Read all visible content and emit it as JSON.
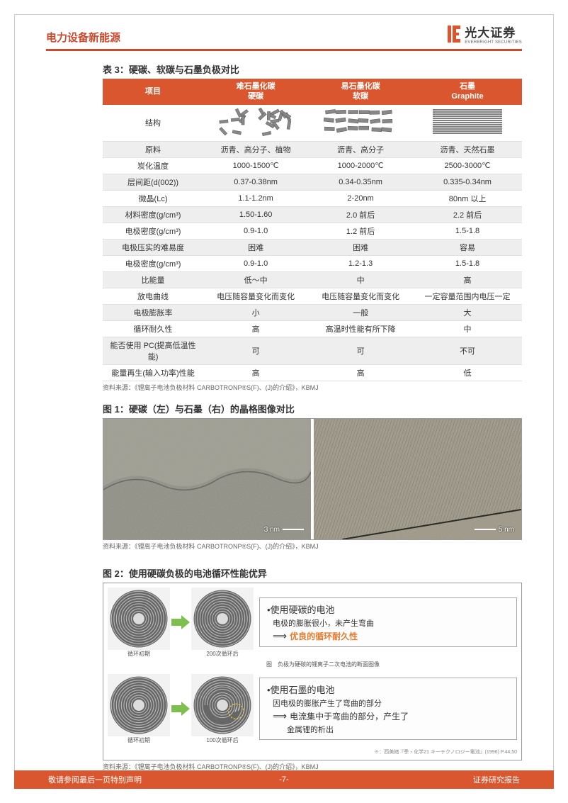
{
  "header": {
    "category": "电力设备新能源",
    "logo_cn": "光大证券",
    "logo_en": "EVERBRIGHT SECURITIES"
  },
  "table3": {
    "title": "表 3：硬碳、软碳与石墨负极对比",
    "header_col1": "项目",
    "header_col2_line1": "难石墨化碳",
    "header_col2_line2": "硬碳",
    "header_col3_line1": "易石墨化碳",
    "header_col3_line2": "软碳",
    "header_col4_line1": "石墨",
    "header_col4_line2": "Graphite",
    "rows": [
      {
        "label": "结构",
        "c2": "",
        "c3": "",
        "c4": "",
        "is_structure": true
      },
      {
        "label": "原料",
        "c2": "沥青、高分子、植物",
        "c3": "沥青、高分子",
        "c4": "沥青、天然石墨"
      },
      {
        "label": "炭化温度",
        "c2": "1000-1500℃",
        "c3": "1000-2000℃",
        "c4": "2500-3000℃"
      },
      {
        "label": "层间距(d(002))",
        "c2": "0.37-0.38nm",
        "c3": "0.34-0.35nm",
        "c4": "0.335-0.34nm"
      },
      {
        "label": "微晶(Lc)",
        "c2": "1.1-1.2nm",
        "c3": "2-20nm",
        "c4": "80nm 以上"
      },
      {
        "label": "材料密度(g/cm³)",
        "c2": "1.50-1.60",
        "c3": "2.0 前后",
        "c4": "2.2 前后"
      },
      {
        "label": "电极密度(g/cm³)",
        "c2": "0.9-1.0",
        "c3": "1.2 前后",
        "c4": "1.5-1.8"
      },
      {
        "label": "电极压实的难易度",
        "c2": "困难",
        "c3": "困难",
        "c4": "容易"
      },
      {
        "label": "电极密度(g/cm³)",
        "c2": "0.9-1.0",
        "c3": "1.2-1.3",
        "c4": "1.5-1.8"
      },
      {
        "label": "比能量",
        "c2": "低～中",
        "c3": "中",
        "c4": "高"
      },
      {
        "label": "放电曲线",
        "c2": "电压随容量变化而变化",
        "c3": "电压随容量变化而变化",
        "c4": "一定容量范围内电压一定"
      },
      {
        "label": "电极膨胀率",
        "c2": "小",
        "c3": "一般",
        "c4": "大"
      },
      {
        "label": "循环耐久性",
        "c2": "高",
        "c3": "高温时性能有所下降",
        "c4": "中"
      },
      {
        "label": "能否使用 PC(提高低温性能)",
        "c2": "可",
        "c3": "可",
        "c4": "不可"
      },
      {
        "label": "能量再生(输入功率)性能",
        "c2": "高",
        "c3": "高",
        "c4": "低"
      }
    ],
    "source": "资料来源：《锂离子电池负极材料 CARBOTRONP®S(F)、(J)的介绍》，KBMJ"
  },
  "figure1": {
    "title": "图 1：硬碳（左）与石墨（右）的晶格图像对比",
    "scale_left": "3 nm",
    "scale_right": "5 nm",
    "source": "资料来源：《锂离子电池负极材料 CARBOTRONP®S(F)、(J)的介绍》，KBMJ"
  },
  "figure2": {
    "title": "图 2：使用硬碳负极的电池循环性能优异",
    "row1": {
      "caption_left": "循环初期",
      "caption_right": "200次循环后",
      "caption_sub": "图　负极为硬碳的锂离子二次电池的断面图像",
      "bullet": "•使用硬碳的电池",
      "line1": "电极的膨胀很小，未产生弯曲",
      "result": "优良的循环耐久性"
    },
    "row2": {
      "caption_left": "循环初期",
      "caption_right": "100次循环后",
      "bullet": "•使用石墨的电池",
      "line1": "因电极的膨胀产生了弯曲的部分",
      "line2a": "电流集中于弯曲的部分，产生了",
      "line2b": "金属锂的析出"
    },
    "footnote": "※：西美緒『季・化学21 キーテクノロジー電池』(1996) P.44,50",
    "source": "资料来源：《锂离子电池负极材料 CARBOTRONP®S(F)、(J)的介绍》，KBMJ"
  },
  "footer": {
    "left": "敬请参阅最后一页特别声明",
    "center": "-7-",
    "right": "证券研究报告"
  },
  "colors": {
    "brand_red": "#c94a2e",
    "table_header": "#d9562e",
    "alt_row": "#eeeeee",
    "highlight": "#e67a2e"
  }
}
